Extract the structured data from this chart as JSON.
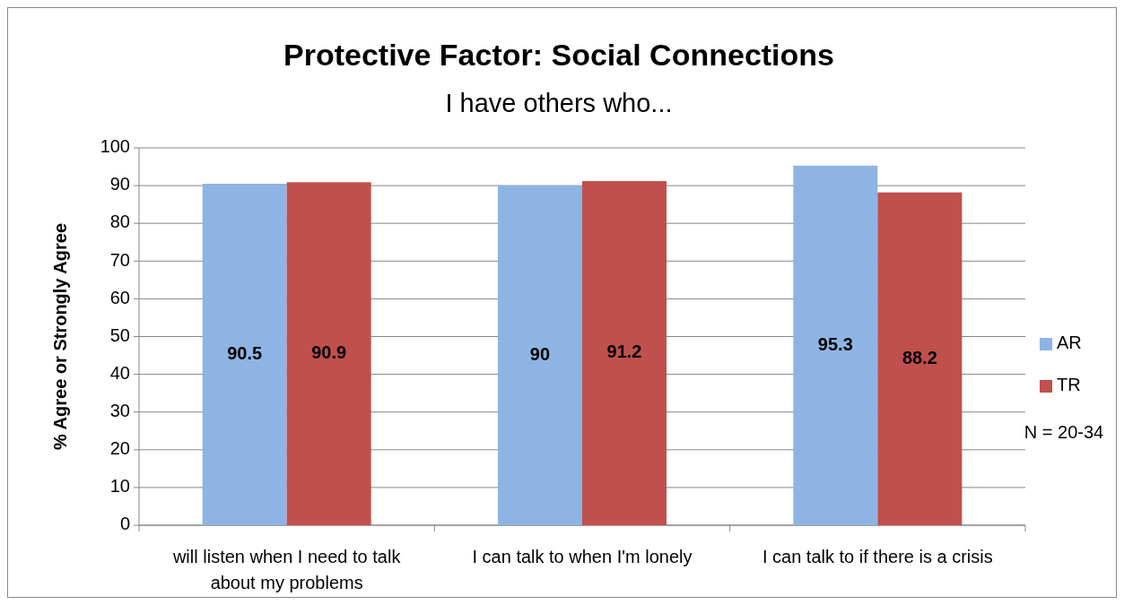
{
  "chart_data": {
    "type": "bar",
    "title": "Protective Factor: Social Connections",
    "subtitle": "I have others who...",
    "ylabel": "% Agree or Strongly Agree",
    "categories": [
      "will listen when I need to talk about my problems",
      "I can talk to when I'm lonely",
      "I can talk to if there is a crisis"
    ],
    "series": [
      {
        "name": "AR",
        "color": "#8eb4e3",
        "values": [
          90.5,
          90,
          95.3
        ]
      },
      {
        "name": "TR",
        "color": "#c0504d",
        "values": [
          90.9,
          91.2,
          88.2
        ]
      }
    ],
    "ylim": [
      0,
      100
    ],
    "yticks": [
      0,
      10,
      20,
      30,
      40,
      50,
      60,
      70,
      80,
      90,
      100
    ],
    "grid": "y",
    "legend": "right",
    "data_labels": true,
    "annotations": [
      "N = 20-34"
    ]
  }
}
